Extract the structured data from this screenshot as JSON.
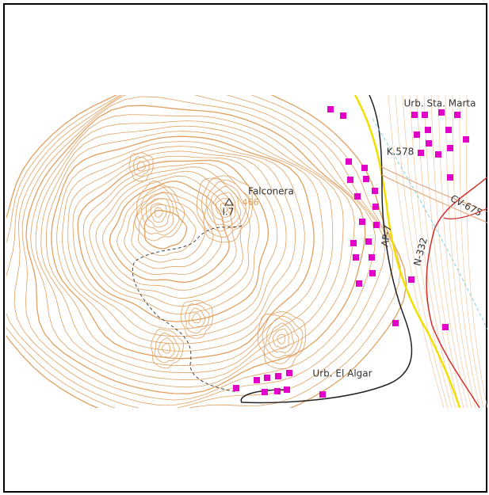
{
  "map": {
    "settlements": [
      "Urb. Sta. Marta",
      "Urb. El Algar"
    ],
    "peak": {
      "name": "Falconera",
      "code": "I.7",
      "elevation": "466"
    },
    "kilometre_marker": "K.578",
    "roads": [
      "CV-675",
      "AP-7",
      "N-332"
    ]
  }
}
